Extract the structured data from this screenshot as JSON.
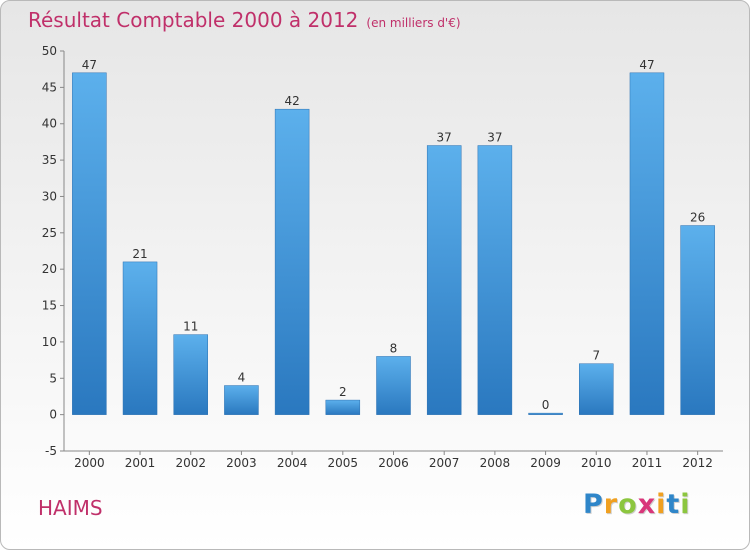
{
  "chart_data": {
    "type": "bar",
    "title": "Résultat Comptable 2000 à 2012",
    "subtitle": "(en milliers d'€)",
    "categories": [
      "2000",
      "2001",
      "2002",
      "2003",
      "2004",
      "2005",
      "2006",
      "2007",
      "2008",
      "2009",
      "2010",
      "2011",
      "2012"
    ],
    "values": [
      47,
      21,
      11,
      4,
      42,
      2,
      8,
      37,
      37,
      0,
      7,
      47,
      26
    ],
    "ylim": [
      -5,
      50
    ],
    "yticks": [
      -5,
      0,
      5,
      10,
      15,
      20,
      25,
      30,
      35,
      40,
      45,
      50
    ],
    "xlabel": "",
    "ylabel": "",
    "grid": false,
    "bar_color": "#3d8fd6"
  },
  "commune": "HAIMS",
  "logo": {
    "letters": [
      "P",
      "r",
      "o",
      "x",
      "i",
      "t",
      "i"
    ],
    "colors": [
      "#2f86c9",
      "#f0a020",
      "#8cc63f",
      "#d9367a",
      "#f0a020",
      "#2f86c9",
      "#8cc63f"
    ]
  }
}
